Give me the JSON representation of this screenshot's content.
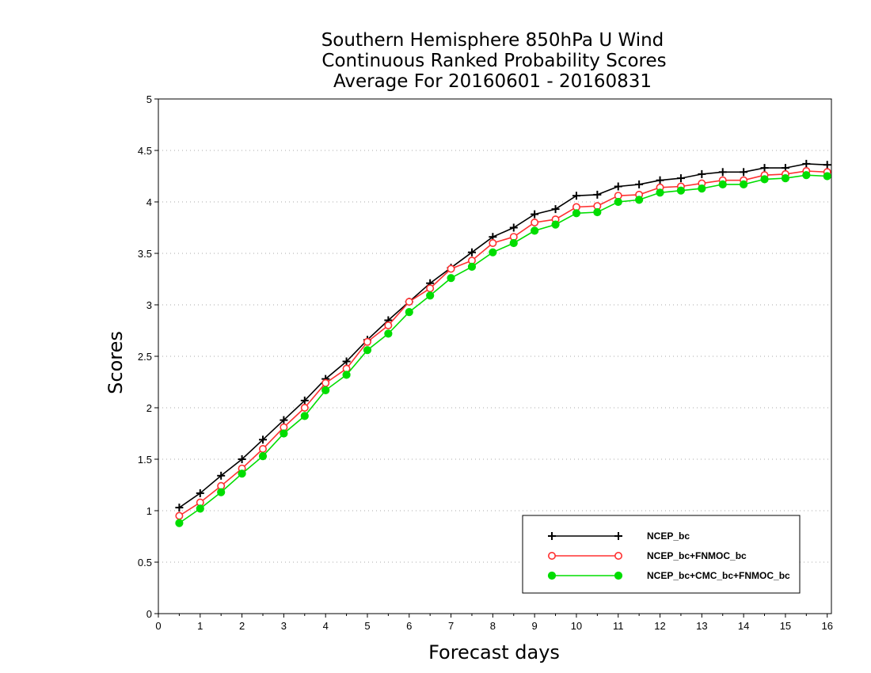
{
  "chart_data": {
    "type": "line",
    "title": [
      "Southern Hemisphere 850hPa U Wind",
      "Continuous Ranked Probability Scores",
      "Average For 20160601 - 20160831"
    ],
    "xlabel": "Forecast days",
    "ylabel": "Scores",
    "xlim": [
      0,
      16.1
    ],
    "ylim": [
      0,
      5
    ],
    "x_ticks": [
      0,
      1,
      2,
      3,
      4,
      5,
      6,
      7,
      8,
      9,
      10,
      11,
      12,
      13,
      14,
      15,
      16
    ],
    "y_ticks": [
      0,
      0.5,
      1,
      1.5,
      2,
      2.5,
      3,
      3.5,
      4,
      4.5,
      5
    ],
    "grid": "horizontal dotted",
    "legend_position": "bottom-right",
    "x": [
      0.5,
      1,
      1.5,
      2,
      2.5,
      3,
      3.5,
      4,
      4.5,
      5,
      5.5,
      6,
      6.5,
      7,
      7.5,
      8,
      8.5,
      9,
      9.5,
      10,
      10.5,
      11,
      11.5,
      12,
      12.5,
      13,
      13.5,
      14,
      14.5,
      15,
      15.5,
      16
    ],
    "series": [
      {
        "name": "NCEP_bc",
        "color": "#000000",
        "marker": "plus",
        "values": [
          1.03,
          1.17,
          1.34,
          1.5,
          1.69,
          1.88,
          2.07,
          2.28,
          2.45,
          2.66,
          2.85,
          3.03,
          3.21,
          3.36,
          3.51,
          3.66,
          3.75,
          3.88,
          3.93,
          4.06,
          4.07,
          4.15,
          4.17,
          4.21,
          4.23,
          4.27,
          4.29,
          4.29,
          4.33,
          4.33,
          4.37,
          4.36
        ]
      },
      {
        "name": "NCEP_bc+FNMOC_bc",
        "color": "#ff3030",
        "marker": "open-circle",
        "values": [
          0.95,
          1.08,
          1.24,
          1.41,
          1.6,
          1.81,
          2.0,
          2.24,
          2.38,
          2.64,
          2.8,
          3.03,
          3.16,
          3.35,
          3.43,
          3.6,
          3.66,
          3.8,
          3.83,
          3.95,
          3.96,
          4.06,
          4.07,
          4.14,
          4.15,
          4.18,
          4.21,
          4.21,
          4.26,
          4.27,
          4.3,
          4.29
        ]
      },
      {
        "name": "NCEP_bc+CMC_bc+FNMOC_bc",
        "color": "#00dd00",
        "marker": "filled-circle",
        "values": [
          0.88,
          1.02,
          1.18,
          1.36,
          1.53,
          1.75,
          1.92,
          2.17,
          2.32,
          2.56,
          2.72,
          2.93,
          3.09,
          3.26,
          3.37,
          3.51,
          3.6,
          3.72,
          3.78,
          3.89,
          3.9,
          4.0,
          4.02,
          4.09,
          4.11,
          4.13,
          4.17,
          4.17,
          4.22,
          4.23,
          4.26,
          4.25
        ]
      }
    ]
  }
}
